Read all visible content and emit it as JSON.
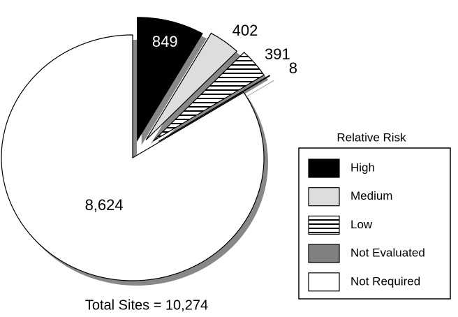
{
  "chart_data": {
    "type": "pie",
    "categories": [
      "High",
      "Medium",
      "Low",
      "Not Evaluated",
      "Not Required"
    ],
    "values": [
      849,
      402,
      391,
      8,
      8624
    ],
    "value_labels": [
      "849",
      "402",
      "391",
      "8",
      "8,624"
    ],
    "colors": [
      "#000000",
      "#dddddd",
      "#ffffff",
      "#808080",
      "#ffffff"
    ],
    "patterns": [
      null,
      null,
      "horizontal-lines",
      null,
      null
    ],
    "legend_title": "Relative Risk",
    "legend": "right",
    "annotation": "Total Sites = 10,274"
  }
}
